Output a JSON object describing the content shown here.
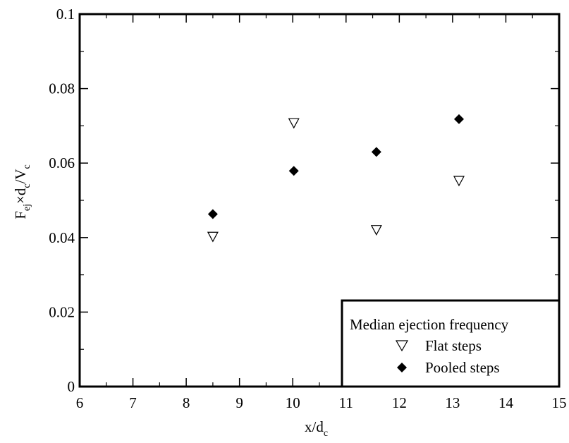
{
  "chart_data": {
    "type": "scatter",
    "xlabel": "x/d",
    "xlabel_sub": "c",
    "ylabel_parts": {
      "F": "F",
      "ej": "ej",
      "times_d": "×d",
      "c1": "c",
      "slash_V": "/V",
      "c2": "c"
    },
    "xlim": [
      6,
      15
    ],
    "ylim": [
      0,
      0.1
    ],
    "x_ticks": [
      6,
      7,
      8,
      9,
      10,
      11,
      12,
      13,
      14,
      15
    ],
    "x_tick_labels": [
      "6",
      "7",
      "8",
      "9",
      "10",
      "11",
      "12",
      "13",
      "14",
      "15"
    ],
    "y_ticks": [
      0,
      0.02,
      0.04,
      0.06,
      0.08,
      0.1
    ],
    "y_tick_labels": [
      "0",
      "0.02",
      "0.04",
      "0.06",
      "0.08",
      "0.1"
    ],
    "grid": false,
    "legend": {
      "title": "Median ejection frequency",
      "placement": "bottom-right"
    },
    "series": [
      {
        "name": "Flat steps",
        "marker": "open-down-triangle",
        "x": [
          8.5,
          10.02,
          11.57,
          13.12
        ],
        "y": [
          0.0403,
          0.0708,
          0.0421,
          0.0553
        ]
      },
      {
        "name": "Pooled steps",
        "marker": "filled-diamond",
        "x": [
          8.5,
          10.02,
          11.57,
          13.12
        ],
        "y": [
          0.0463,
          0.0579,
          0.063,
          0.0718
        ]
      }
    ]
  }
}
